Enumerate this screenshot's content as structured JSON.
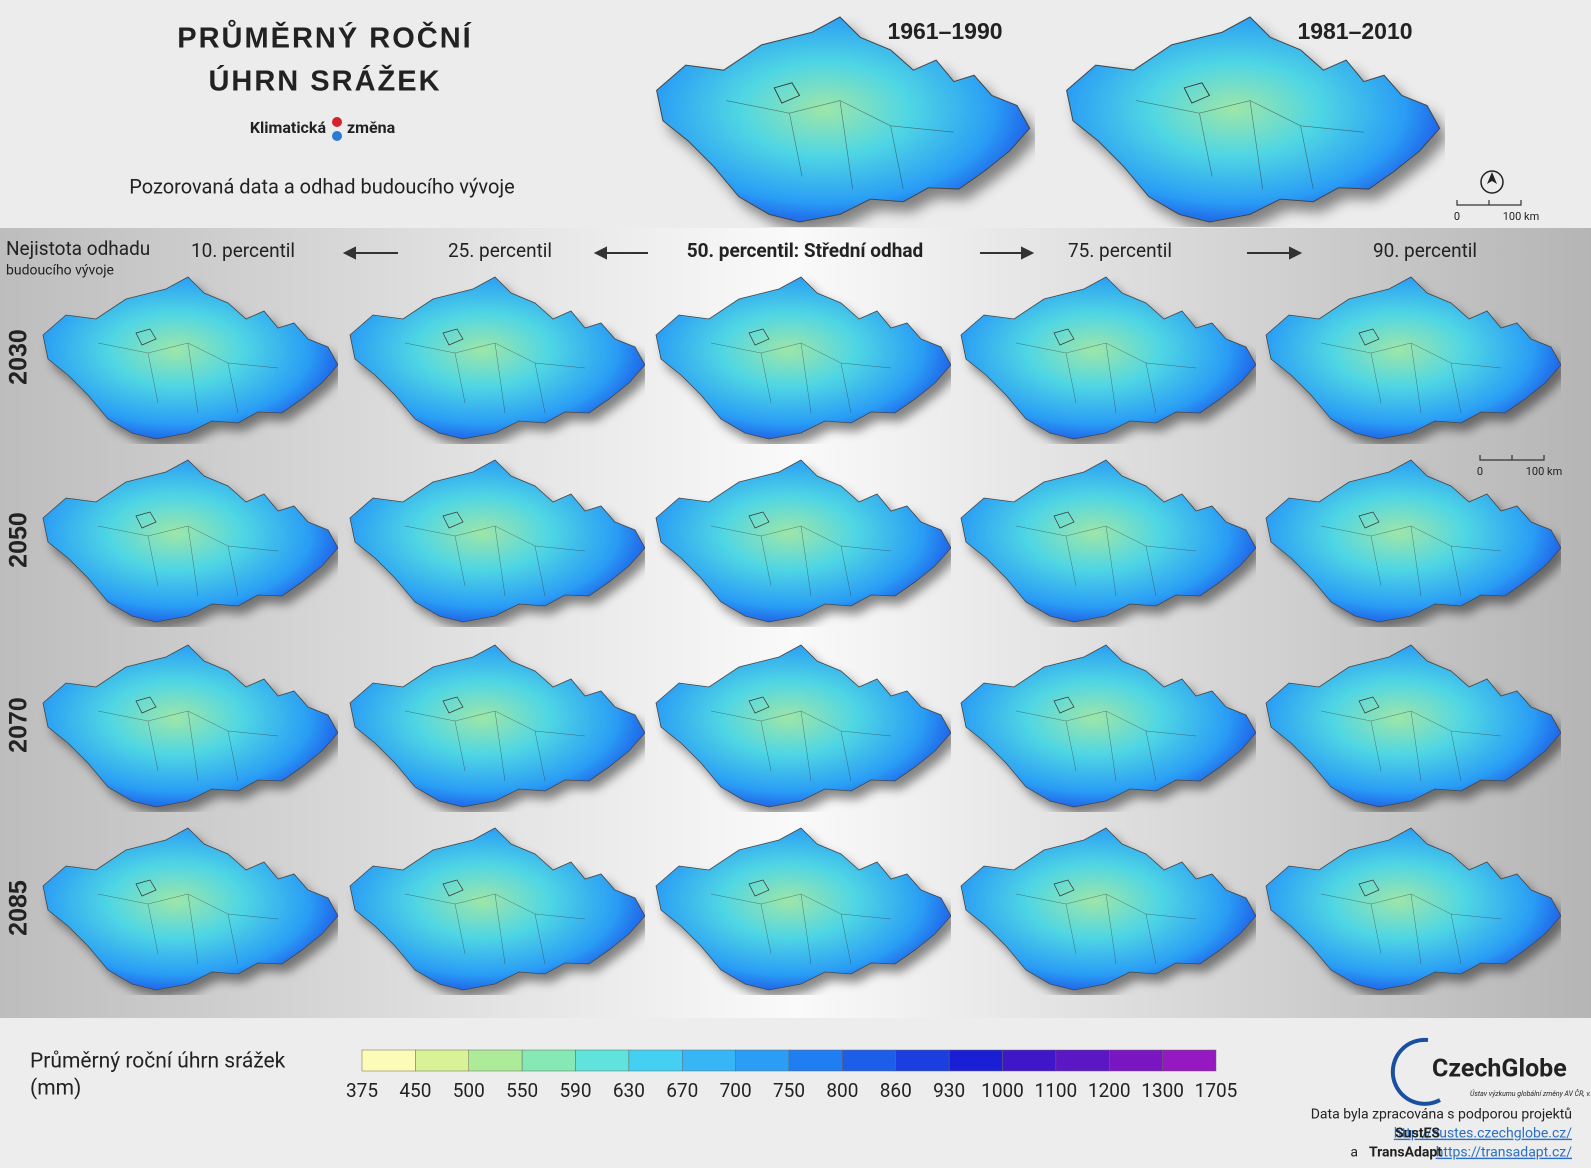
{
  "header": {
    "title_line1": "PRŮMĚRNÝ ROČNÍ",
    "title_line2": "ÚHRN SRÁŽEK",
    "logo_left": "Klimatická",
    "logo_right": "změna",
    "subtitle": "Pozorovaná data a odhad budoucího vývoje"
  },
  "observed": [
    "1961–1990",
    "1981–2010"
  ],
  "scale_bar": {
    "start": "0",
    "end": "100 km"
  },
  "uncertainty": {
    "line1": "Nejistota odhadu",
    "line2": "budoucího vývoje"
  },
  "percentiles": [
    "10. percentil",
    "25. percentil",
    "50. percentil: Střední odhad",
    "75. percentil",
    "90. percentil"
  ],
  "years": [
    "2030",
    "2050",
    "2070",
    "2085"
  ],
  "legend": {
    "title_line1": "Průměrný roční úhrn srážek",
    "title_line2": "(mm)",
    "labels": [
      375,
      450,
      500,
      550,
      590,
      630,
      670,
      700,
      750,
      800,
      860,
      930,
      1000,
      1100,
      1200,
      1300,
      1705
    ],
    "colors": [
      "#fdfbb8",
      "#d9f296",
      "#aeeb98",
      "#86e8b4",
      "#5fe3dc",
      "#44d0f2",
      "#36b6f5",
      "#2a9df5",
      "#1f7ef2",
      "#1c5ee8",
      "#1a3ee0",
      "#1a1fd6",
      "#3f17c9",
      "#5c17c4",
      "#7a15c2",
      "#9518c0"
    ]
  },
  "footer": {
    "brand": "CzechGlobe",
    "brand_sub": "Ústav výzkumu globální změny AV ČR, v.v.i.",
    "credit": "Data byla zpracována s podporou projektů",
    "project1": "SustES",
    "url1": "http://sustes.czechglobe.cz/",
    "and": "a",
    "project2": "TransAdapt",
    "url2": "https://transadapt.cz/"
  }
}
